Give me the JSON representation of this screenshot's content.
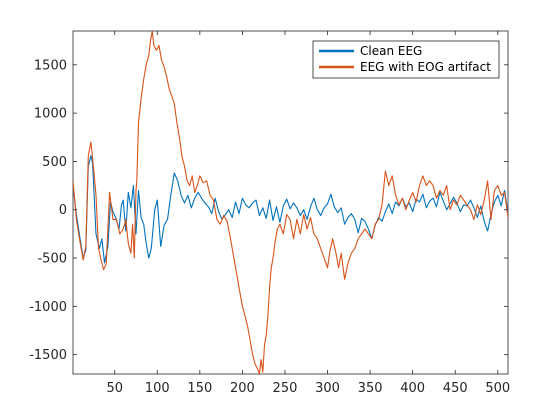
{
  "chart_data": {
    "type": "line",
    "xlim": [
      1,
      512
    ],
    "ylim": [
      -1700,
      1850
    ],
    "xticks": [
      50,
      100,
      150,
      200,
      250,
      300,
      350,
      400,
      450,
      500
    ],
    "yticks": [
      -1500,
      -1000,
      -500,
      0,
      500,
      1000,
      1500
    ],
    "grid": false,
    "legend_position": "top-right",
    "series": [
      {
        "name": "Clean EEG",
        "color": "#0072BD",
        "points": [
          [
            1,
            250
          ],
          [
            5,
            -50
          ],
          [
            9,
            -280
          ],
          [
            13,
            -500
          ],
          [
            16,
            -420
          ],
          [
            19,
            450
          ],
          [
            22,
            560
          ],
          [
            24,
            480
          ],
          [
            28,
            -250
          ],
          [
            32,
            -400
          ],
          [
            35,
            -300
          ],
          [
            38,
            -550
          ],
          [
            42,
            -380
          ],
          [
            45,
            80
          ],
          [
            48,
            -20
          ],
          [
            52,
            -100
          ],
          [
            55,
            -200
          ],
          [
            58,
            50
          ],
          [
            60,
            100
          ],
          [
            63,
            -220
          ],
          [
            66,
            180
          ],
          [
            69,
            20
          ],
          [
            72,
            250
          ],
          [
            75,
            -250
          ],
          [
            78,
            200
          ],
          [
            81,
            -80
          ],
          [
            84,
            -150
          ],
          [
            87,
            -350
          ],
          [
            90,
            -500
          ],
          [
            93,
            -400
          ],
          [
            97,
            0
          ],
          [
            100,
            100
          ],
          [
            104,
            -380
          ],
          [
            108,
            -160
          ],
          [
            112,
            -100
          ],
          [
            116,
            160
          ],
          [
            120,
            380
          ],
          [
            124,
            300
          ],
          [
            128,
            150
          ],
          [
            132,
            70
          ],
          [
            136,
            150
          ],
          [
            140,
            20
          ],
          [
            144,
            120
          ],
          [
            148,
            180
          ],
          [
            152,
            120
          ],
          [
            156,
            70
          ],
          [
            160,
            30
          ],
          [
            164,
            -40
          ],
          [
            168,
            120
          ],
          [
            172,
            -20
          ],
          [
            176,
            -100
          ],
          [
            180,
            -50
          ],
          [
            184,
            0
          ],
          [
            188,
            -80
          ],
          [
            192,
            80
          ],
          [
            196,
            -40
          ],
          [
            200,
            120
          ],
          [
            204,
            50
          ],
          [
            208,
            20
          ],
          [
            212,
            70
          ],
          [
            216,
            100
          ],
          [
            220,
            -60
          ],
          [
            224,
            20
          ],
          [
            228,
            -90
          ],
          [
            232,
            100
          ],
          [
            236,
            -110
          ],
          [
            240,
            30
          ],
          [
            244,
            -130
          ],
          [
            248,
            40
          ],
          [
            252,
            110
          ],
          [
            256,
            10
          ],
          [
            260,
            70
          ],
          [
            264,
            20
          ],
          [
            268,
            -60
          ],
          [
            272,
            0
          ],
          [
            276,
            -100
          ],
          [
            280,
            30
          ],
          [
            284,
            120
          ],
          [
            288,
            0
          ],
          [
            292,
            -60
          ],
          [
            296,
            20
          ],
          [
            300,
            60
          ],
          [
            304,
            160
          ],
          [
            308,
            30
          ],
          [
            312,
            -30
          ],
          [
            316,
            20
          ],
          [
            320,
            -150
          ],
          [
            324,
            -80
          ],
          [
            328,
            -40
          ],
          [
            332,
            -100
          ],
          [
            336,
            -240
          ],
          [
            340,
            -90
          ],
          [
            344,
            -120
          ],
          [
            348,
            -200
          ],
          [
            352,
            -300
          ],
          [
            356,
            -160
          ],
          [
            360,
            -80
          ],
          [
            364,
            -120
          ],
          [
            368,
            -20
          ],
          [
            372,
            60
          ],
          [
            376,
            -40
          ],
          [
            380,
            80
          ],
          [
            384,
            40
          ],
          [
            388,
            120
          ],
          [
            392,
            30
          ],
          [
            396,
            70
          ],
          [
            400,
            -20
          ],
          [
            404,
            110
          ],
          [
            408,
            80
          ],
          [
            412,
            160
          ],
          [
            416,
            20
          ],
          [
            420,
            90
          ],
          [
            424,
            120
          ],
          [
            428,
            30
          ],
          [
            432,
            180
          ],
          [
            436,
            90
          ],
          [
            440,
            0
          ],
          [
            444,
            60
          ],
          [
            448,
            130
          ],
          [
            452,
            70
          ],
          [
            456,
            -20
          ],
          [
            460,
            50
          ],
          [
            464,
            40
          ],
          [
            468,
            100
          ],
          [
            472,
            20
          ],
          [
            476,
            -80
          ],
          [
            480,
            40
          ],
          [
            484,
            -120
          ],
          [
            488,
            -220
          ],
          [
            492,
            -50
          ],
          [
            496,
            80
          ],
          [
            500,
            150
          ],
          [
            504,
            40
          ],
          [
            508,
            200
          ],
          [
            512,
            -40
          ]
        ]
      },
      {
        "name": "EEG with EOG artifact",
        "color": "#D95319",
        "points": [
          [
            1,
            300
          ],
          [
            5,
            -100
          ],
          [
            9,
            -320
          ],
          [
            13,
            -520
          ],
          [
            16,
            -380
          ],
          [
            19,
            560
          ],
          [
            22,
            700
          ],
          [
            25,
            450
          ],
          [
            28,
            150
          ],
          [
            31,
            -400
          ],
          [
            34,
            -520
          ],
          [
            37,
            -620
          ],
          [
            40,
            -560
          ],
          [
            44,
            180
          ],
          [
            48,
            -100
          ],
          [
            52,
            -100
          ],
          [
            56,
            -250
          ],
          [
            60,
            -200
          ],
          [
            63,
            -100
          ],
          [
            66,
            -350
          ],
          [
            69,
            -450
          ],
          [
            71,
            -150
          ],
          [
            73,
            -500
          ],
          [
            75,
            200
          ],
          [
            76,
            300
          ],
          [
            78,
            900
          ],
          [
            81,
            1150
          ],
          [
            84,
            1350
          ],
          [
            87,
            1500
          ],
          [
            90,
            1600
          ],
          [
            92,
            1750
          ],
          [
            94,
            1850
          ],
          [
            96,
            1700
          ],
          [
            99,
            1650
          ],
          [
            102,
            1700
          ],
          [
            105,
            1550
          ],
          [
            108,
            1480
          ],
          [
            111,
            1380
          ],
          [
            114,
            1250
          ],
          [
            117,
            1180
          ],
          [
            120,
            1100
          ],
          [
            123,
            900
          ],
          [
            126,
            750
          ],
          [
            129,
            550
          ],
          [
            132,
            450
          ],
          [
            135,
            300
          ],
          [
            138,
            250
          ],
          [
            141,
            350
          ],
          [
            144,
            180
          ],
          [
            147,
            250
          ],
          [
            150,
            350
          ],
          [
            154,
            280
          ],
          [
            158,
            300
          ],
          [
            162,
            150
          ],
          [
            166,
            100
          ],
          [
            170,
            -100
          ],
          [
            174,
            -150
          ],
          [
            178,
            -60
          ],
          [
            182,
            -120
          ],
          [
            185,
            -250
          ],
          [
            188,
            -400
          ],
          [
            191,
            -550
          ],
          [
            194,
            -700
          ],
          [
            197,
            -850
          ],
          [
            200,
            -1000
          ],
          [
            203,
            -1100
          ],
          [
            206,
            -1200
          ],
          [
            209,
            -1350
          ],
          [
            212,
            -1500
          ],
          [
            215,
            -1600
          ],
          [
            218,
            -1650
          ],
          [
            220,
            -1700
          ],
          [
            222,
            -1550
          ],
          [
            224,
            -1680
          ],
          [
            226,
            -1400
          ],
          [
            228,
            -1300
          ],
          [
            230,
            -1100
          ],
          [
            232,
            -800
          ],
          [
            234,
            -600
          ],
          [
            236,
            -500
          ],
          [
            238,
            -350
          ],
          [
            241,
            -200
          ],
          [
            244,
            -150
          ],
          [
            248,
            -250
          ],
          [
            252,
            -50
          ],
          [
            256,
            -100
          ],
          [
            260,
            -300
          ],
          [
            264,
            -100
          ],
          [
            268,
            -250
          ],
          [
            272,
            -50
          ],
          [
            276,
            -200
          ],
          [
            280,
            -80
          ],
          [
            284,
            -250
          ],
          [
            288,
            -300
          ],
          [
            292,
            -400
          ],
          [
            296,
            -500
          ],
          [
            300,
            -600
          ],
          [
            303,
            -420
          ],
          [
            306,
            -300
          ],
          [
            310,
            -450
          ],
          [
            313,
            -600
          ],
          [
            316,
            -450
          ],
          [
            320,
            -720
          ],
          [
            324,
            -550
          ],
          [
            328,
            -450
          ],
          [
            332,
            -400
          ],
          [
            336,
            -300
          ],
          [
            340,
            -250
          ],
          [
            344,
            -200
          ],
          [
            348,
            -250
          ],
          [
            352,
            -300
          ],
          [
            356,
            -150
          ],
          [
            360,
            -100
          ],
          [
            364,
            50
          ],
          [
            368,
            400
          ],
          [
            372,
            250
          ],
          [
            376,
            350
          ],
          [
            380,
            150
          ],
          [
            384,
            50
          ],
          [
            388,
            120
          ],
          [
            392,
            0
          ],
          [
            396,
            100
          ],
          [
            400,
            180
          ],
          [
            404,
            80
          ],
          [
            408,
            250
          ],
          [
            412,
            350
          ],
          [
            416,
            250
          ],
          [
            420,
            300
          ],
          [
            424,
            250
          ],
          [
            428,
            120
          ],
          [
            432,
            200
          ],
          [
            436,
            150
          ],
          [
            440,
            250
          ],
          [
            444,
            0
          ],
          [
            448,
            100
          ],
          [
            452,
            50
          ],
          [
            456,
            150
          ],
          [
            460,
            100
          ],
          [
            464,
            50
          ],
          [
            468,
            0
          ],
          [
            472,
            -100
          ],
          [
            476,
            50
          ],
          [
            480,
            -50
          ],
          [
            484,
            100
          ],
          [
            488,
            300
          ],
          [
            492,
            -100
          ],
          [
            496,
            200
          ],
          [
            500,
            250
          ],
          [
            504,
            150
          ],
          [
            508,
            180
          ],
          [
            512,
            -80
          ]
        ]
      }
    ]
  }
}
